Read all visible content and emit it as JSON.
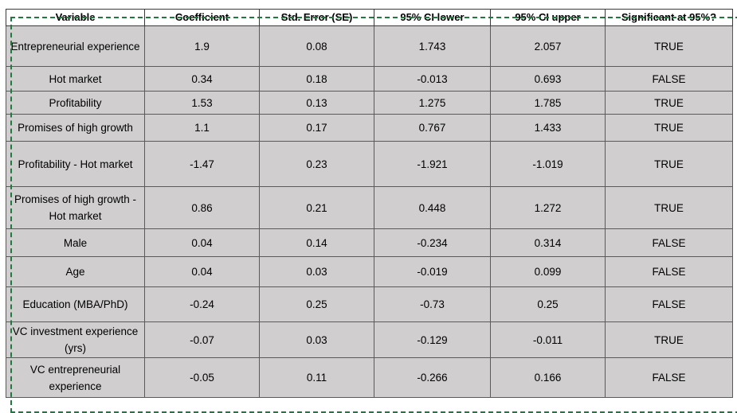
{
  "table": {
    "headers": [
      "Variable",
      "Coefficient",
      "Std. Error (SE)",
      "95% CI lower",
      "95% CI upper",
      "Significant at 95%?"
    ],
    "rows": [
      {
        "variable": "Entrepreneurial experience",
        "coefficient": "1.9",
        "se": "0.08",
        "ci_lower": "1.743",
        "ci_upper": "2.057",
        "significant": "TRUE"
      },
      {
        "variable": "Hot market",
        "coefficient": "0.34",
        "se": "0.18",
        "ci_lower": "-0.013",
        "ci_upper": "0.693",
        "significant": "FALSE"
      },
      {
        "variable": "Profitability",
        "coefficient": "1.53",
        "se": "0.13",
        "ci_lower": "1.275",
        "ci_upper": "1.785",
        "significant": "TRUE"
      },
      {
        "variable": "Promises of high growth",
        "coefficient": "1.1",
        "se": "0.17",
        "ci_lower": "0.767",
        "ci_upper": "1.433",
        "significant": "TRUE"
      },
      {
        "variable": "Profitability -  Hot market",
        "coefficient": "-1.47",
        "se": "0.23",
        "ci_lower": "-1.921",
        "ci_upper": "-1.019",
        "significant": "TRUE"
      },
      {
        "variable": "Promises of high growth - Hot market",
        "coefficient": "0.86",
        "se": "0.21",
        "ci_lower": "0.448",
        "ci_upper": "1.272",
        "significant": "TRUE"
      },
      {
        "variable": "Male",
        "coefficient": "0.04",
        "se": "0.14",
        "ci_lower": "-0.234",
        "ci_upper": "0.314",
        "significant": "FALSE"
      },
      {
        "variable": "Age",
        "coefficient": "0.04",
        "se": "0.03",
        "ci_lower": "-0.019",
        "ci_upper": "0.099",
        "significant": "FALSE"
      },
      {
        "variable": "Education (MBA/PhD)",
        "coefficient": "-0.24",
        "se": "0.25",
        "ci_lower": "-0.73",
        "ci_upper": "0.25",
        "significant": "FALSE"
      },
      {
        "variable": "VC investment experience (yrs)",
        "coefficient": "-0.07",
        "se": "0.03",
        "ci_lower": "-0.129",
        "ci_upper": "-0.011",
        "significant": "TRUE"
      },
      {
        "variable": "VC entrepreneurial experience",
        "coefficient": "-0.05",
        "se": "0.11",
        "ci_lower": "-0.266",
        "ci_upper": "0.166",
        "significant": "FALSE"
      }
    ]
  },
  "colors": {
    "cell_fill": "#d0cece",
    "header_fill": "#ffffff",
    "grid_line": "#5a5a5a",
    "copy_marquee": "#1f7a3f"
  }
}
